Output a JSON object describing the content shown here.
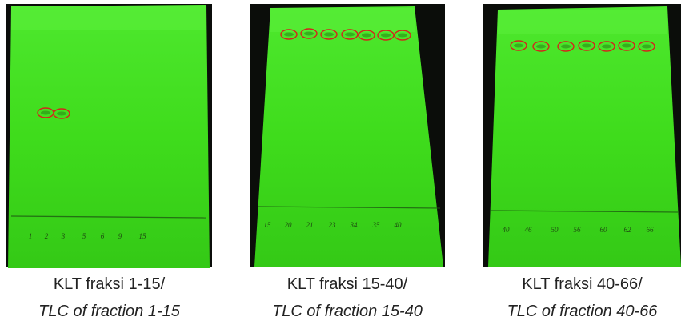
{
  "figures": [
    {
      "caption": {
        "label": "KLT fraksi 1-15/",
        "translation": "TLC of fraction 1-15"
      },
      "lanes": [
        "1",
        "2",
        "3",
        "5",
        "6",
        "9",
        "15"
      ]
    },
    {
      "caption": {
        "label": "KLT fraksi 15-40/",
        "translation": "TLC of fraction 15-40"
      },
      "lanes": [
        "15",
        "20",
        "21",
        "23",
        "34",
        "35",
        "40"
      ]
    },
    {
      "caption": {
        "label": "KLT fraksi 40-66/",
        "translation": "TLC of fraction 40-66"
      },
      "lanes": [
        "40",
        "46",
        "50",
        "56",
        "60",
        "62",
        "66"
      ]
    }
  ]
}
